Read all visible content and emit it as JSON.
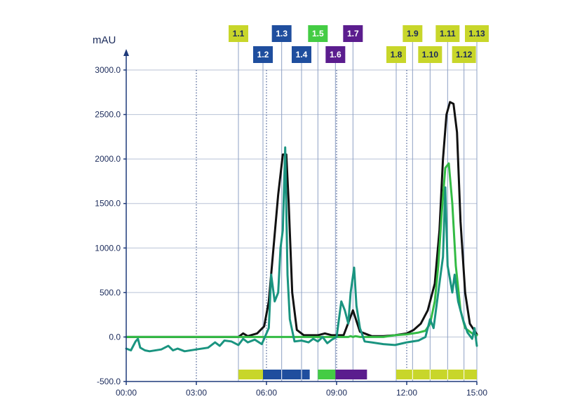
{
  "chart_data": {
    "type": "line",
    "title": "",
    "xlabel": "",
    "ylabel": "mAU",
    "x_unit": "minutes",
    "xlim": [
      0,
      15
    ],
    "ylim": [
      -500,
      3000
    ],
    "x_ticks": [
      0,
      3,
      6,
      9,
      12,
      15
    ],
    "x_tick_labels": [
      "00:00",
      "03:00",
      "06:00",
      "09:00",
      "12:00",
      "15:00"
    ],
    "y_ticks": [
      -500,
      0,
      500,
      1000,
      1500,
      2000,
      2500,
      3000
    ],
    "y_tick_labels": [
      "-500.0",
      "0.0",
      "500.0",
      "1000.0",
      "1500.0",
      "2000.0",
      "2500.0",
      "3000.0"
    ],
    "grid": true,
    "series": [
      {
        "color": "#111111",
        "x": [
          0,
          4.8,
          5.0,
          5.2,
          5.6,
          5.9,
          6.1,
          6.3,
          6.5,
          6.7,
          6.85,
          6.95,
          7.1,
          7.3,
          7.6,
          8.2,
          8.5,
          8.8,
          9.3,
          9.5,
          9.7,
          10.0,
          10.5,
          11.0,
          11.5,
          12.0,
          12.3,
          12.6,
          12.9,
          13.2,
          13.4,
          13.55,
          13.7,
          13.85,
          14.0,
          14.15,
          14.3,
          14.5,
          14.7,
          15.0
        ],
        "values": [
          0,
          0,
          40,
          10,
          40,
          120,
          400,
          1000,
          1600,
          2050,
          2050,
          1500,
          500,
          80,
          20,
          20,
          40,
          20,
          20,
          160,
          300,
          60,
          10,
          10,
          20,
          40,
          80,
          150,
          300,
          600,
          1200,
          2000,
          2500,
          2640,
          2620,
          2300,
          1300,
          500,
          150,
          30
        ]
      },
      {
        "color": "#33bb44",
        "x": [
          0,
          9.5,
          9.6,
          9.7,
          9.8,
          10.0,
          11.0,
          11.5,
          12.0,
          12.5,
          12.8,
          13.0,
          13.2,
          13.35,
          13.5,
          13.65,
          13.8,
          13.95,
          14.1,
          14.3,
          14.5,
          14.8,
          15.0
        ],
        "values": [
          0,
          0,
          10,
          0,
          10,
          0,
          0,
          20,
          30,
          50,
          70,
          150,
          400,
          800,
          1400,
          1900,
          1950,
          1500,
          800,
          300,
          100,
          40,
          20
        ]
      },
      {
        "color": "#1a9480",
        "x": [
          0,
          0.2,
          0.4,
          0.5,
          0.6,
          0.8,
          1.0,
          1.5,
          1.8,
          2.0,
          2.2,
          2.5,
          3.0,
          3.5,
          3.8,
          4.0,
          4.2,
          4.5,
          4.8,
          5.0,
          5.2,
          5.5,
          5.8,
          6.0,
          6.1,
          6.2,
          6.35,
          6.5,
          6.6,
          6.7,
          6.8,
          6.9,
          7.0,
          7.2,
          7.5,
          7.8,
          8.0,
          8.2,
          8.4,
          8.6,
          8.8,
          9.0,
          9.2,
          9.35,
          9.5,
          9.6,
          9.75,
          9.85,
          10.0,
          10.2,
          10.5,
          11.0,
          11.5,
          12.0,
          12.5,
          12.8,
          13.0,
          13.15,
          13.3,
          13.45,
          13.55,
          13.65,
          13.75,
          13.85,
          13.95,
          14.05,
          14.2,
          14.4,
          14.6,
          14.8,
          14.9,
          15.0
        ],
        "values": [
          -130,
          -150,
          -50,
          -20,
          -120,
          -150,
          -160,
          -140,
          -100,
          -150,
          -130,
          -160,
          -140,
          -120,
          -60,
          -100,
          -40,
          -50,
          -90,
          -20,
          -60,
          -30,
          -80,
          40,
          100,
          700,
          400,
          500,
          1000,
          1200,
          2130,
          700,
          200,
          -50,
          -40,
          -60,
          -20,
          -50,
          0,
          -70,
          -30,
          0,
          400,
          300,
          150,
          500,
          780,
          350,
          100,
          -50,
          -60,
          -80,
          -90,
          -60,
          -40,
          0,
          200,
          100,
          400,
          700,
          900,
          1680,
          800,
          650,
          500,
          700,
          400,
          200,
          50,
          -20,
          100,
          -100
        ]
      }
    ],
    "fractions": [
      {
        "label": "1.1",
        "x": 4.8,
        "color": "#c8d62a",
        "text_color": "#1a2a5a",
        "row": "top"
      },
      {
        "label": "1.2",
        "x": 5.85,
        "color": "#1f4e9e",
        "text_color": "#ffffff",
        "row": "bottom"
      },
      {
        "label": "1.3",
        "x": 6.65,
        "color": "#1f4e9e",
        "text_color": "#ffffff",
        "row": "top"
      },
      {
        "label": "1.4",
        "x": 7.5,
        "color": "#1f4e9e",
        "text_color": "#ffffff",
        "row": "bottom"
      },
      {
        "label": "1.5",
        "x": 8.2,
        "color": "#44cc44",
        "text_color": "#ffffff",
        "row": "top"
      },
      {
        "label": "1.6",
        "x": 8.95,
        "color": "#5b1d8e",
        "text_color": "#ffffff",
        "row": "bottom"
      },
      {
        "label": "1.7",
        "x": 9.7,
        "color": "#5b1d8e",
        "text_color": "#ffffff",
        "row": "top"
      },
      {
        "label": "1.8",
        "x": 11.55,
        "color": "#c8d62a",
        "text_color": "#1a2a5a",
        "row": "bottom"
      },
      {
        "label": "1.9",
        "x": 12.25,
        "color": "#c8d62a",
        "text_color": "#1a2a5a",
        "row": "top"
      },
      {
        "label": "1.10",
        "x": 13.0,
        "color": "#c8d62a",
        "text_color": "#1a2a5a",
        "row": "bottom"
      },
      {
        "label": "1.11",
        "x": 13.75,
        "color": "#c8d62a",
        "text_color": "#1a2a5a",
        "row": "top"
      },
      {
        "label": "1.12",
        "x": 14.45,
        "color": "#c8d62a",
        "text_color": "#1a2a5a",
        "row": "bottom"
      },
      {
        "label": "1.13",
        "x": 15.0,
        "color": "#c8d62a",
        "text_color": "#1a2a5a",
        "row": "top"
      }
    ],
    "fraction_bars": [
      {
        "start": 4.8,
        "end": 5.85,
        "color": "#c8d62a"
      },
      {
        "start": 5.85,
        "end": 7.85,
        "color": "#1f4e9e"
      },
      {
        "start": 8.2,
        "end": 8.95,
        "color": "#44cc44"
      },
      {
        "start": 8.95,
        "end": 10.3,
        "color": "#5b1d8e"
      },
      {
        "start": 11.55,
        "end": 15.0,
        "color": "#c8d62a"
      }
    ],
    "fraction_bar_dividers": [
      6.65,
      7.5,
      12.25,
      13.0,
      13.75,
      14.45
    ]
  }
}
